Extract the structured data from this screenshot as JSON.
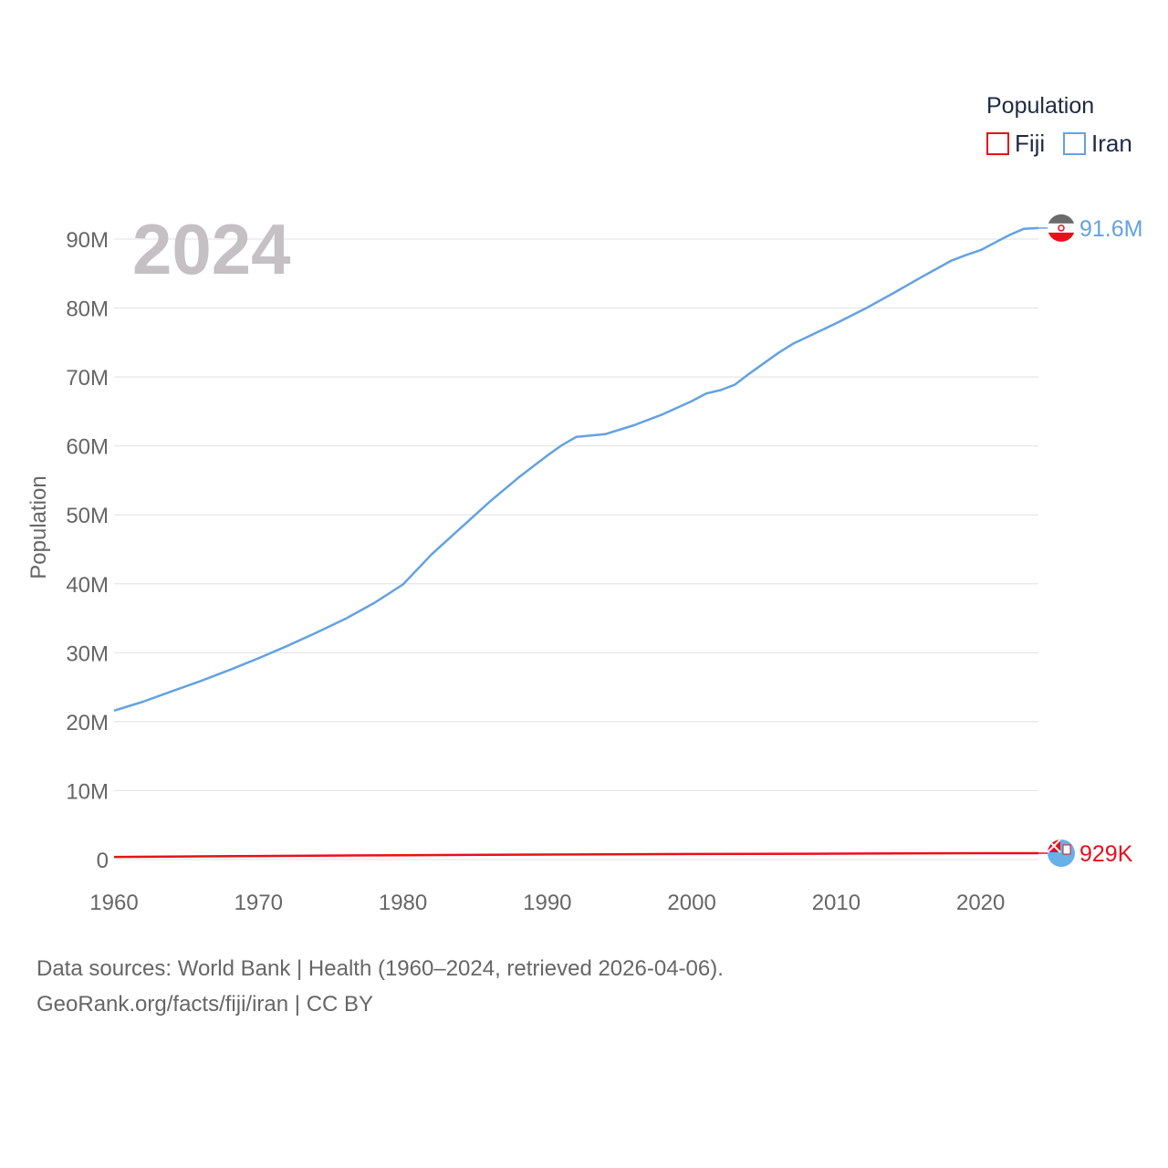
{
  "chart_data": {
    "type": "line",
    "title": "Population",
    "year_overlay": "2024",
    "ylabel": "Population",
    "xlabel": "",
    "xlim": [
      1960,
      2024
    ],
    "ylim": [
      0,
      90000000
    ],
    "x_ticks": [
      1960,
      1970,
      1980,
      1990,
      2000,
      2010,
      2020
    ],
    "x_tick_labels": [
      "1960",
      "1970",
      "1980",
      "1990",
      "2000",
      "2010",
      "2020"
    ],
    "y_ticks": [
      0,
      10000000,
      20000000,
      30000000,
      40000000,
      50000000,
      60000000,
      70000000,
      80000000,
      90000000
    ],
    "y_tick_labels": [
      "0",
      "10M",
      "20M",
      "30M",
      "40M",
      "50M",
      "60M",
      "70M",
      "80M",
      "90M"
    ],
    "legend_title": "Population",
    "grid": true,
    "series": [
      {
        "name": "Fiji",
        "color": "#e8101b",
        "end_label": "929K",
        "flag_icon": "fiji-flag-icon",
        "x": [
          1960,
          1970,
          1980,
          1990,
          2000,
          2010,
          2020,
          2024
        ],
        "values": [
          390000,
          520000,
          630000,
          730000,
          810000,
          860000,
          920000,
          929000
        ]
      },
      {
        "name": "Iran",
        "color": "#63a2e1",
        "end_label": "91.6M",
        "flag_icon": "iran-flag-icon",
        "x": [
          1960,
          1962,
          1964,
          1966,
          1968,
          1970,
          1972,
          1974,
          1976,
          1978,
          1980,
          1982,
          1984,
          1986,
          1988,
          1990,
          1991,
          1992,
          1994,
          1996,
          1998,
          2000,
          2001,
          2002,
          2003,
          2004,
          2006,
          2007,
          2008,
          2010,
          2012,
          2014,
          2016,
          2018,
          2019,
          2020,
          2021,
          2022,
          2023,
          2024
        ],
        "values": [
          21600000,
          22900000,
          24400000,
          25900000,
          27500000,
          29200000,
          31000000,
          32900000,
          34900000,
          37200000,
          39900000,
          44300000,
          48100000,
          51900000,
          55400000,
          58600000,
          60100000,
          61300000,
          61700000,
          63000000,
          64600000,
          66500000,
          67600000,
          68100000,
          68900000,
          70500000,
          73500000,
          74800000,
          75800000,
          77800000,
          79900000,
          82200000,
          84600000,
          86900000,
          87700000,
          88400000,
          89500000,
          90600000,
          91500000,
          91600000
        ]
      }
    ]
  },
  "footer": {
    "source_line": "Data sources: World Bank | Health (1960–2024, retrieved 2026-04-06).",
    "credit_line": "GeoRank.org/facts/fiji/iran | CC BY"
  }
}
